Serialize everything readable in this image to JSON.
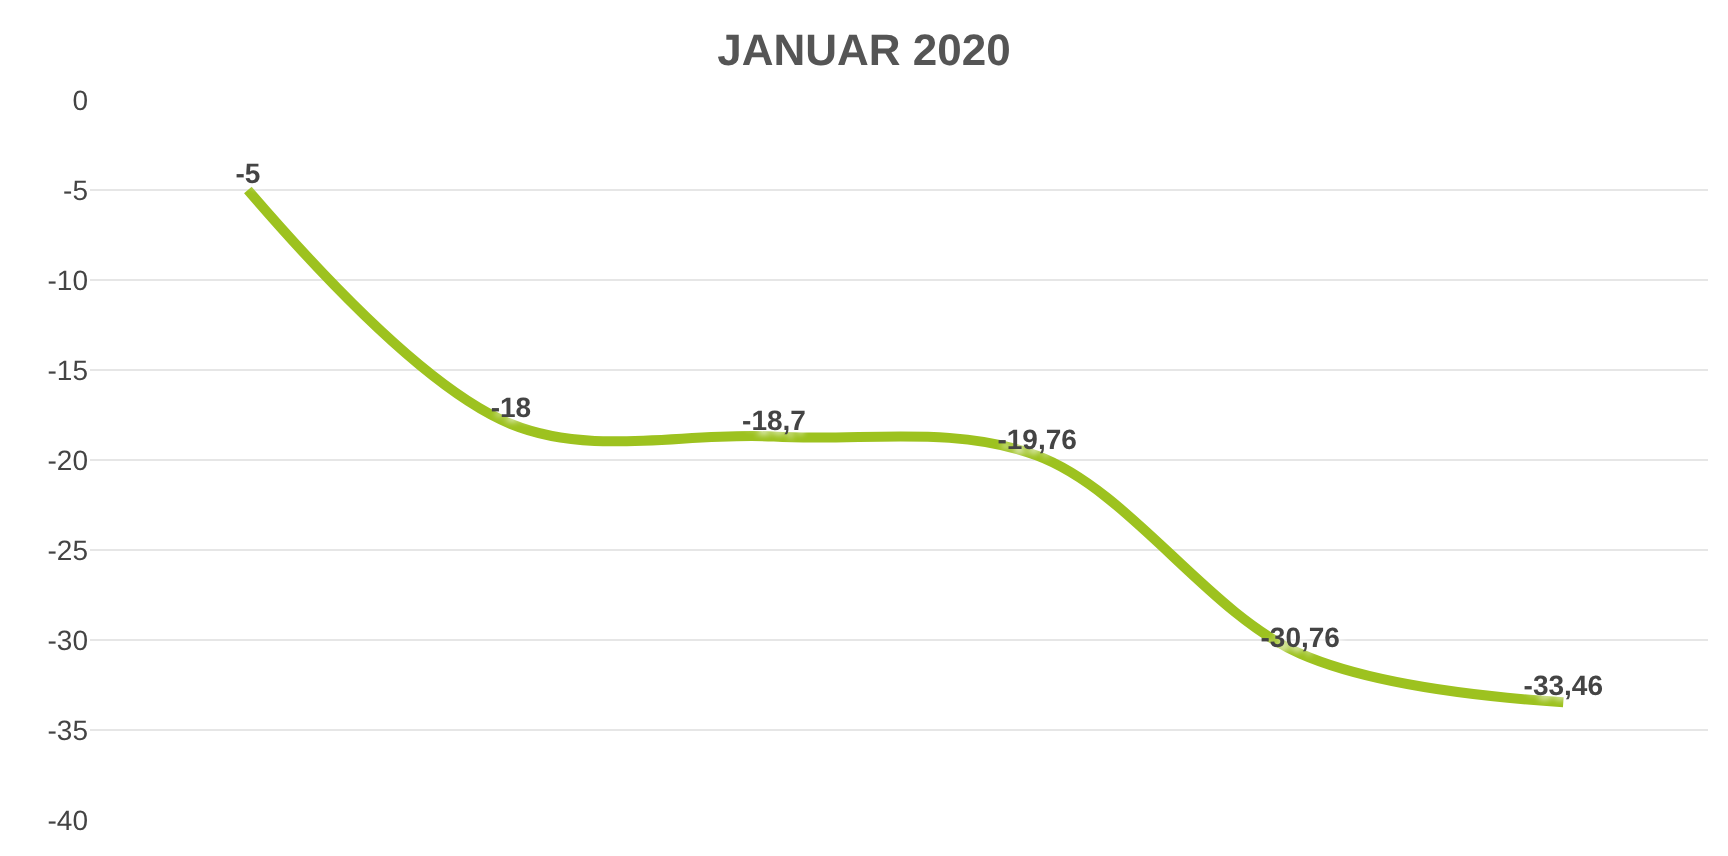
{
  "chart_data": {
    "type": "line",
    "title": "JANUAR 2020",
    "categories": [
      null,
      null,
      null,
      null,
      null,
      null
    ],
    "series": [
      {
        "color": "#9dc21f",
        "values": [
          -5,
          -18,
          -18.7,
          -19.76,
          -30.76,
          -33.46
        ],
        "value_labels": [
          "-5",
          "-18",
          "-18,7",
          "-19,76",
          "-30,76",
          "-33,46"
        ]
      }
    ],
    "ylim": [
      -40,
      0
    ],
    "yticks": [
      0,
      -5,
      -10,
      -15,
      -20,
      -25,
      -30,
      -35,
      -40
    ],
    "grid": "y",
    "legend": false,
    "marker": "none",
    "line_style": "solid"
  }
}
